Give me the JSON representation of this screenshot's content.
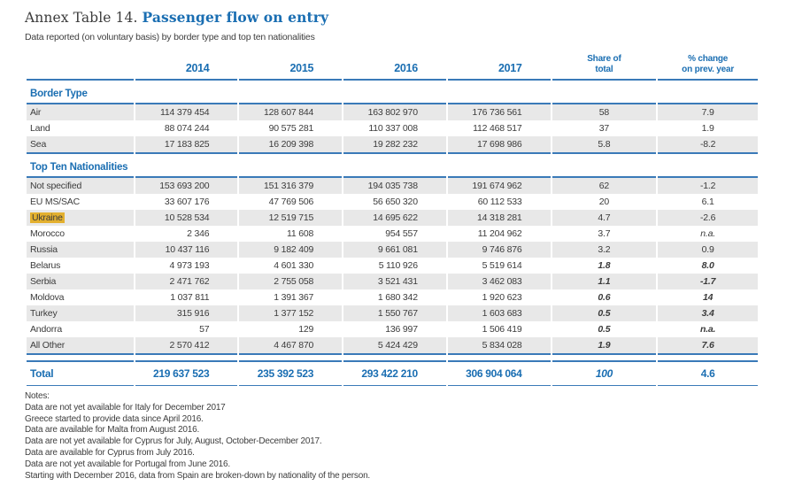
{
  "page": {
    "title_prefix": "Annex Table 14.",
    "title_main": "Passenger flow on entry",
    "subtitle": "Data reported (on voluntary basis) by border type and top ten nationalities"
  },
  "colors": {
    "accent_blue": "#1a6eb2",
    "rule_blue": "#3a7ab8",
    "stripe_gray": "#e8e8e8",
    "highlight_yellow": "#e3b02f"
  },
  "table": {
    "year_columns": [
      "2014",
      "2015",
      "2016",
      "2017"
    ],
    "share_header": "Share of\ntotal",
    "change_header": "% change\non prev. year",
    "sections": [
      {
        "title": "Border Type",
        "rows": [
          {
            "label": "Air",
            "values": [
              "114 379 454",
              "128 607 844",
              "163 802 970",
              "176 736 561"
            ],
            "share": "58",
            "change": "7.9"
          },
          {
            "label": "Land",
            "values": [
              "88 074 244",
              "90 575 281",
              "110 337 008",
              "112 468 517"
            ],
            "share": "37",
            "change": "1.9"
          },
          {
            "label": "Sea",
            "values": [
              "17 183 825",
              "16 209 398",
              "19 282 232",
              "17 698 986"
            ],
            "share": "5.8",
            "change": "-8.2"
          }
        ]
      },
      {
        "title": "Top Ten Nationalities",
        "rows": [
          {
            "label": "Not specified",
            "values": [
              "153 693 200",
              "151 316 379",
              "194 035 738",
              "191 674 962"
            ],
            "share": "62",
            "change": "-1.2"
          },
          {
            "label": "EU MS/SAC",
            "values": [
              "33 607 176",
              "47 769 506",
              "56 650 320",
              "60 112 533"
            ],
            "share": "20",
            "change": "6.1"
          },
          {
            "label": "Ukraine",
            "values": [
              "10 528 534",
              "12 519 715",
              "14 695 622",
              "14 318 281"
            ],
            "share": "4.7",
            "change": "-2.6",
            "highlight": true
          },
          {
            "label": "Morocco",
            "values": [
              "2 346",
              "11 608",
              "954 557",
              "11 204 962"
            ],
            "share": "3.7",
            "change": "n.a."
          },
          {
            "label": "Russia",
            "values": [
              "10 437 116",
              "9 182 409",
              "9 661 081",
              "9 746 876"
            ],
            "share": "3.2",
            "change": "0.9"
          },
          {
            "label": "Belarus",
            "values": [
              "4 973 193",
              "4 601 330",
              "5 110 926",
              "5 519 614"
            ],
            "share": "1.8",
            "change": "8.0",
            "emphasis": true
          },
          {
            "label": "Serbia",
            "values": [
              "2 471 762",
              "2 755 058",
              "3 521 431",
              "3 462 083"
            ],
            "share": "1.1",
            "change": "-1.7",
            "emphasis": true
          },
          {
            "label": "Moldova",
            "values": [
              "1 037 811",
              "1 391 367",
              "1 680 342",
              "1 920 623"
            ],
            "share": "0.6",
            "change": "14",
            "emphasis": true
          },
          {
            "label": "Turkey",
            "values": [
              "315 916",
              "1 377 152",
              "1 550 767",
              "1 603 683"
            ],
            "share": "0.5",
            "change": "3.4",
            "emphasis": true
          },
          {
            "label": "Andorra",
            "values": [
              "57",
              "129",
              "136 997",
              "1 506 419"
            ],
            "share": "0.5",
            "change": "n.a.",
            "emphasis": true
          },
          {
            "label": "All Other",
            "values": [
              "2 570 412",
              "4 467 870",
              "5 424 429",
              "5 834 028"
            ],
            "share": "1.9",
            "change": "7.6",
            "emphasis": true
          }
        ]
      }
    ],
    "total": {
      "label": "Total",
      "values": [
        "219 637 523",
        "235 392 523",
        "293 422 210",
        "306 904 064"
      ],
      "share": "100",
      "change": "4.6"
    }
  },
  "notes": [
    "Notes:",
    "Data are not yet available for Italy for December 2017",
    "Greece started to provide data since April 2016.",
    "Data are available for Malta from August 2016.",
    "Data are not yet available for Cyprus for July, August, October-December 2017.",
    "Data are available for Cyprus from July 2016.",
    "Data are not yet available for Portugal from June 2016.",
    "Starting with December 2016, data from Spain are broken-down by nationality of the person."
  ]
}
